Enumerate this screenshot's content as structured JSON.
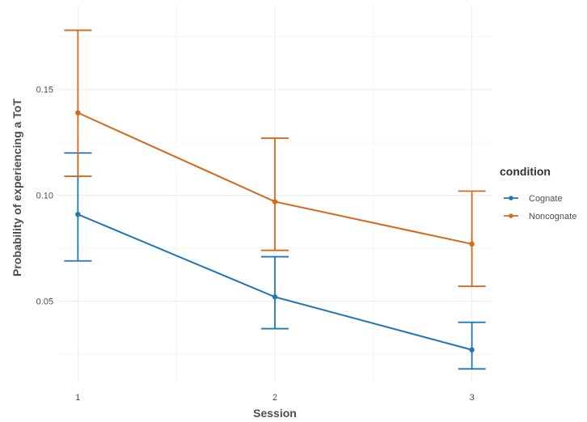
{
  "chart_data": {
    "type": "line",
    "x": [
      1,
      2,
      3
    ],
    "x_ticks": [
      "1",
      "2",
      "3"
    ],
    "y_ticks": [
      "0.05",
      "0.10",
      "0.15"
    ],
    "y_tick_values": [
      0.05,
      0.1,
      0.15
    ],
    "xlabel": "Session",
    "ylabel": "Probability of experiencing a ToT",
    "xlim": [
      0.9,
      3.1
    ],
    "ylim": [
      0.012,
      0.19
    ],
    "grid": true,
    "legend": {
      "title": "condition",
      "position": "right"
    },
    "series": [
      {
        "name": "Cognate",
        "color": "#1f77b4",
        "values": [
          0.091,
          0.052,
          0.027
        ],
        "lower": [
          0.069,
          0.037,
          0.018
        ],
        "upper": [
          0.12,
          0.071,
          0.04
        ]
      },
      {
        "name": "Noncognate",
        "color": "#d4691e",
        "values": [
          0.139,
          0.097,
          0.077
        ],
        "lower": [
          0.109,
          0.074,
          0.057
        ],
        "upper": [
          0.178,
          0.127,
          0.102
        ]
      }
    ]
  }
}
